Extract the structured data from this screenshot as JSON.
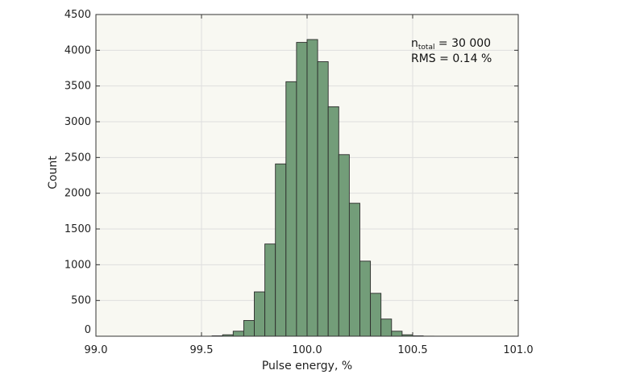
{
  "chart_data": {
    "type": "bar",
    "title": "",
    "xlabel": "Pulse energy, %",
    "ylabel": "Count",
    "xlim": [
      99.0,
      101.0
    ],
    "ylim": [
      0,
      4500
    ],
    "xticks": [
      "99.0",
      "99.5",
      "100.0",
      "100.5",
      "101.0"
    ],
    "xtick_values": [
      99.0,
      99.5,
      100.0,
      100.5,
      101.0
    ],
    "yticks": [
      "0",
      "500",
      "1000",
      "1500",
      "2000",
      "2500",
      "3000",
      "3500",
      "4000",
      "4500"
    ],
    "ytick_values": [
      0,
      500,
      1000,
      1500,
      2000,
      2500,
      3000,
      3500,
      4000,
      4500
    ],
    "grid": true,
    "bin_width": 0.05,
    "bin_starts": [
      99.55,
      99.6,
      99.65,
      99.7,
      99.75,
      99.8,
      99.85,
      99.9,
      99.95,
      100.0,
      100.05,
      100.1,
      100.15,
      100.2,
      100.25,
      100.3,
      100.35,
      100.4,
      100.45,
      100.5,
      100.55
    ],
    "values": [
      5,
      20,
      70,
      220,
      620,
      1290,
      2410,
      3560,
      4110,
      4150,
      3840,
      3210,
      2540,
      1860,
      1050,
      600,
      240,
      70,
      20,
      5,
      1
    ],
    "annotation": {
      "n_prefix": "n",
      "n_subscript": "total",
      "n_value": " = 30 000",
      "rms": "RMS = 0.14 %"
    },
    "colors": {
      "bar_fill": "#739d79",
      "bar_stroke": "#2b2b2b",
      "plot_background": "#f8f8f2",
      "grid": "#dedede"
    }
  }
}
